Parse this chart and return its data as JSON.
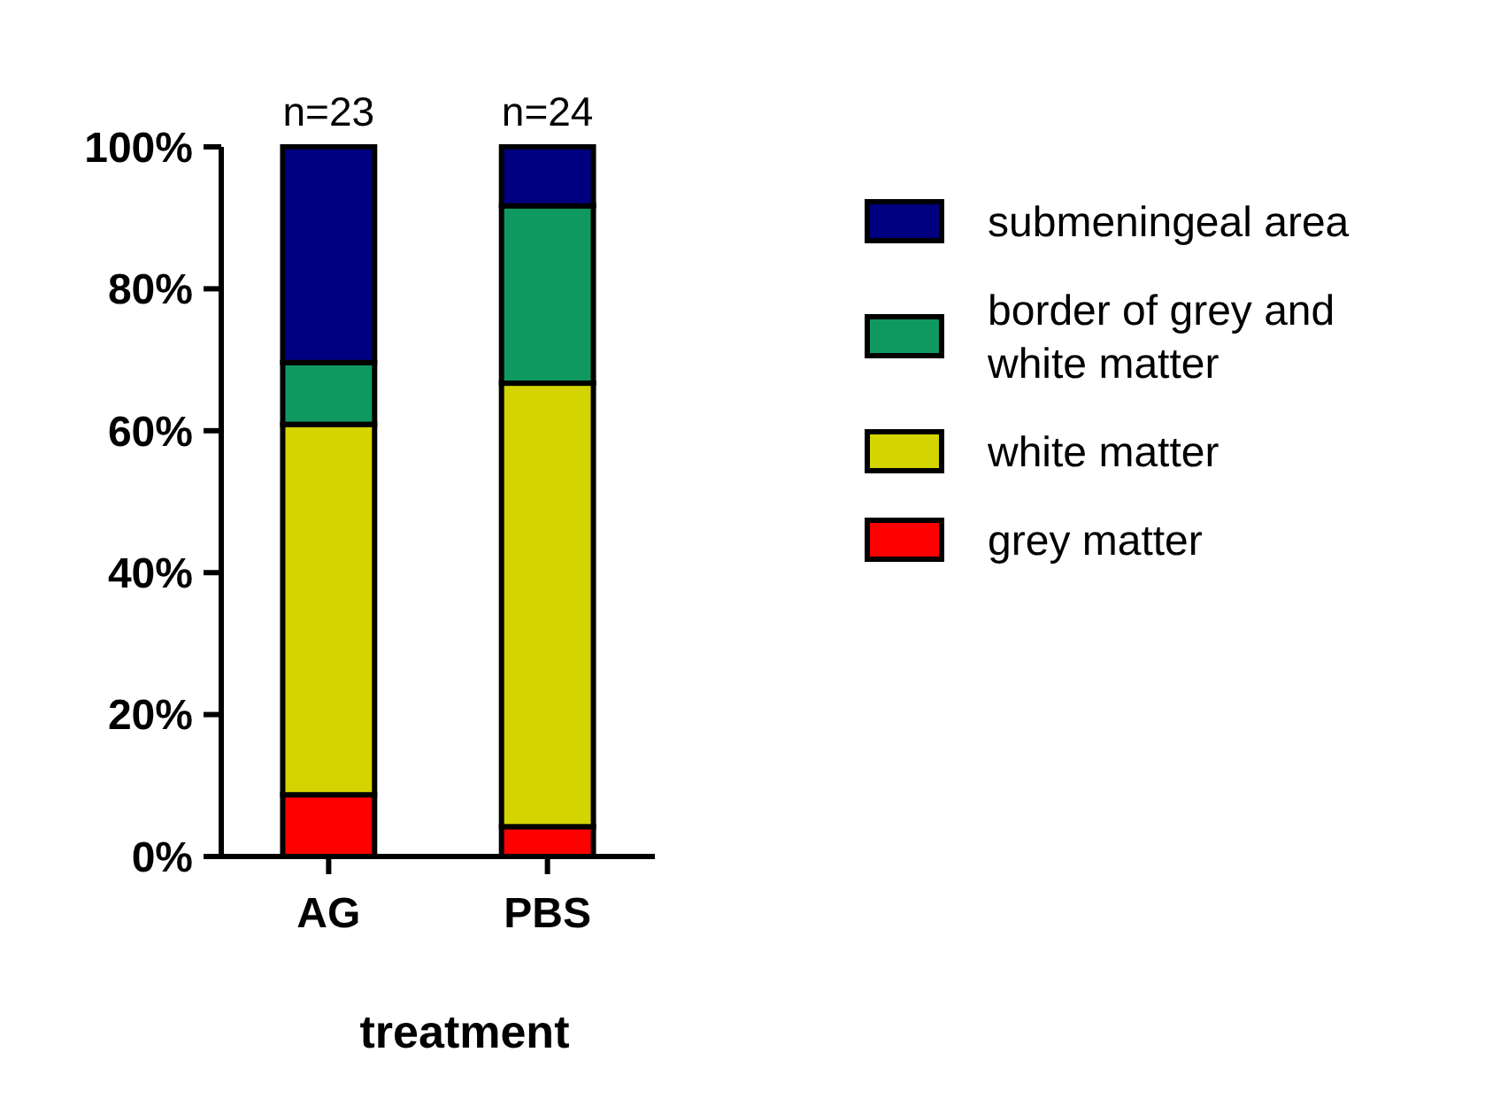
{
  "chart_data": {
    "type": "bar",
    "stacked": true,
    "xlabel": "treatment",
    "categories": [
      "AG",
      "PBS"
    ],
    "series": [
      {
        "name": "grey matter",
        "color": "#ff0000",
        "values": [
          8.7,
          4.2
        ]
      },
      {
        "name": "white matter",
        "color": "#d4d400",
        "values": [
          52.2,
          62.5
        ]
      },
      {
        "name": "border of grey and white matter",
        "color": "#0f9960",
        "values": [
          8.7,
          25
        ]
      },
      {
        "name": "submeningeal area",
        "color": "#000080",
        "values": [
          30.4,
          8.3
        ]
      }
    ],
    "ylim": [
      0,
      100
    ],
    "yticks": [
      {
        "value": 0,
        "label": "0%"
      },
      {
        "value": 20,
        "label": "20%"
      },
      {
        "value": 40,
        "label": "40%"
      },
      {
        "value": 60,
        "label": "60%"
      },
      {
        "value": 80,
        "label": "80%"
      },
      {
        "value": 100,
        "label": "100%"
      }
    ],
    "annotations": [
      {
        "text": "n=23",
        "x": "AG",
        "y": 100
      },
      {
        "text": "n=24",
        "x": "PBS",
        "y": 100
      }
    ],
    "legend": "right",
    "grid": false
  }
}
